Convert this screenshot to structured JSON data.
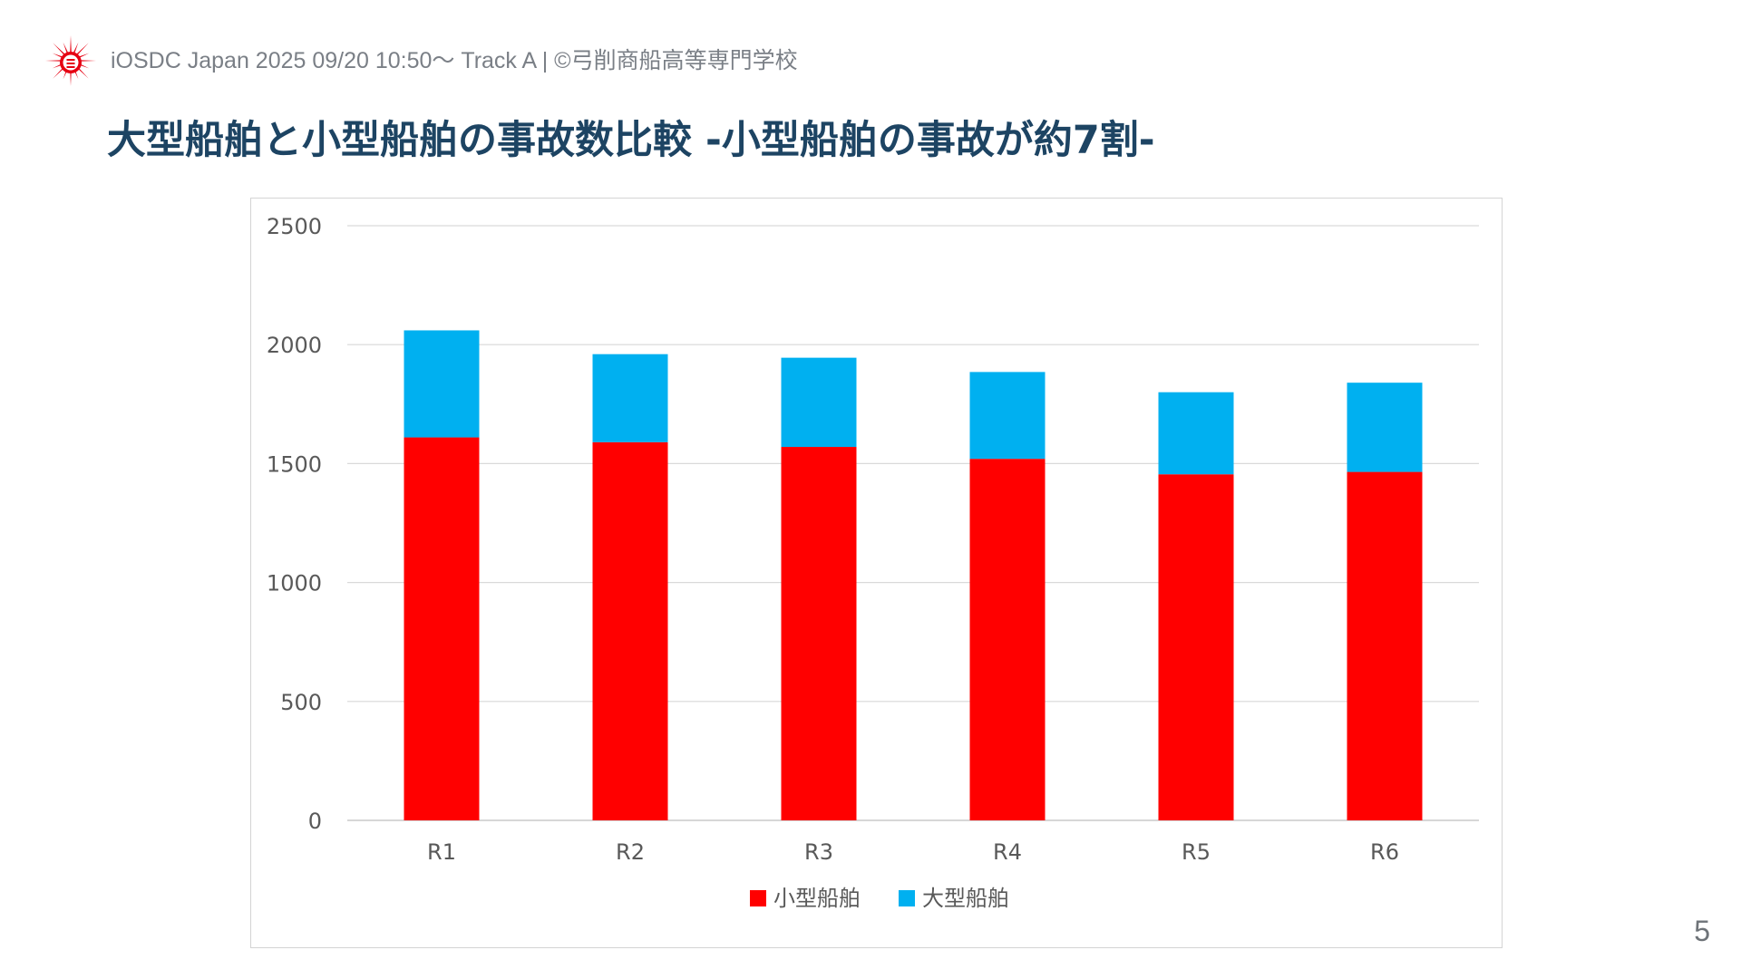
{
  "header": {
    "text": "iOSDC Japan 2025 09/20 10:50〜 Track A | ©弓削商船高等専門学校",
    "logo_icon": "school-emblem-icon",
    "logo_color": "#e60012"
  },
  "slide": {
    "title": "大型船舶と小型船舶の事故数比較 -小型船舶の事故が約7割-",
    "page_number": "5"
  },
  "chart_data": {
    "type": "bar",
    "stacked": true,
    "categories": [
      "R1",
      "R2",
      "R3",
      "R4",
      "R5",
      "R6"
    ],
    "series": [
      {
        "name": "小型船舶",
        "color": "#ff0000",
        "values": [
          1610,
          1590,
          1570,
          1520,
          1455,
          1465
        ]
      },
      {
        "name": "大型船舶",
        "color": "#00b0f0",
        "values": [
          450,
          370,
          375,
          365,
          345,
          375
        ]
      }
    ],
    "ylim": [
      0,
      2500
    ],
    "yticks": [
      "0",
      "500",
      "1000",
      "1500",
      "2000",
      "2500"
    ],
    "grid": true,
    "legend": "bottom",
    "title": "",
    "xlabel": "",
    "ylabel": ""
  }
}
